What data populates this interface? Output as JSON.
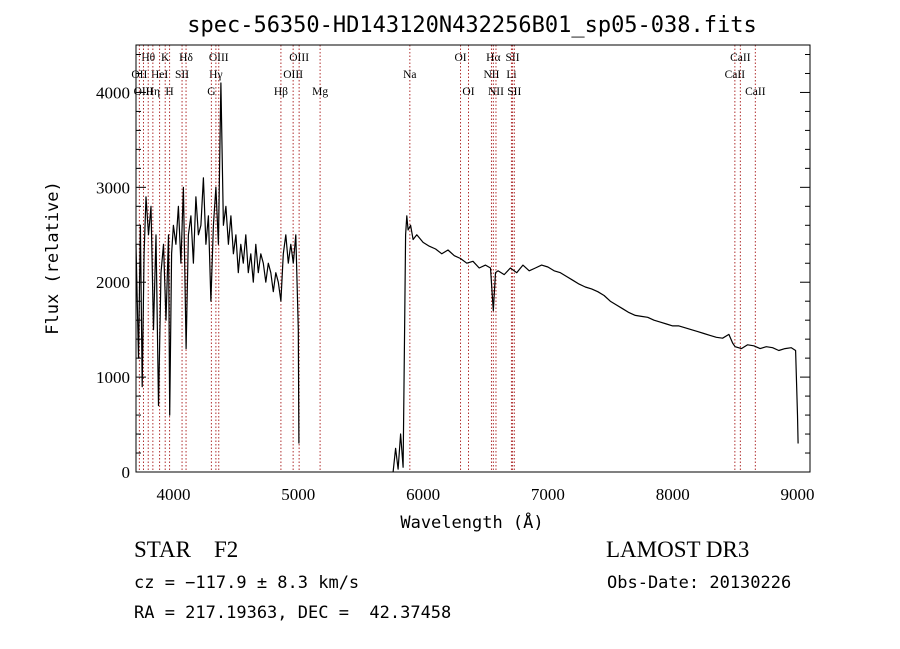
{
  "chart_data": {
    "type": "line",
    "title": "spec-56350-HD143120N432256B01_sp05-038.fits",
    "xlabel": "Wavelength (Å)",
    "ylabel": "Flux (relative)",
    "xlim": [
      3700,
      9100
    ],
    "ylim": [
      0,
      4500
    ],
    "xticks": [
      4000,
      5000,
      6000,
      7000,
      8000,
      9000
    ],
    "yticks": [
      0,
      1000,
      2000,
      3000,
      4000
    ],
    "xtick_labels": [
      "4000",
      "5000",
      "6000",
      "7000",
      "8000",
      "9000"
    ],
    "ytick_labels": [
      "0",
      "1000",
      "2000",
      "3000",
      "4000"
    ],
    "series": [
      {
        "name": "spectrum",
        "color": "#000000",
        "segments": [
          {
            "x": [
              3700,
              3720,
              3735,
              3750,
              3765,
              3780,
              3800,
              3820,
              3840,
              3860,
              3880,
              3900,
              3920,
              3940,
              3960,
              3970,
              3985,
              4000,
              4020,
              4040,
              4060,
              4080,
              4101,
              4120,
              4140,
              4160,
              4180,
              4200,
              4220,
              4240,
              4260,
              4280,
              4300,
              4320,
              4340,
              4360,
              4380,
              4400,
              4420,
              4440,
              4460,
              4480,
              4500,
              4520,
              4540,
              4560,
              4580,
              4600,
              4620,
              4640,
              4660,
              4680,
              4700,
              4720,
              4740,
              4760,
              4780,
              4800,
              4820,
              4840,
              4861,
              4880,
              4900,
              4920,
              4940,
              4960,
              4980,
              5000,
              5005
            ],
            "y": [
              2400,
              1200,
              2600,
              900,
              2300,
              2900,
              2500,
              2800,
              1500,
              2500,
              700,
              2100,
              2400,
              1600,
              2500,
              600,
              2300,
              2600,
              2400,
              2800,
              2200,
              3000,
              1300,
              2500,
              2700,
              2200,
              2900,
              2500,
              2600,
              3100,
              2400,
              2700,
              1800,
              2600,
              3000,
              2400,
              4100,
              2600,
              2800,
              2400,
              2700,
              2300,
              2500,
              2100,
              2400,
              2200,
              2500,
              2100,
              2300,
              2000,
              2400,
              2100,
              2300,
              2200,
              2000,
              2200,
              2100,
              1900,
              2100,
              2000,
              1800,
              2300,
              2500,
              2200,
              2400,
              2200,
              2500,
              1500,
              300
            ]
          },
          {
            "x": [
              5760,
              5780,
              5800,
              5820,
              5840,
              5850,
              5860,
              5870,
              5880,
              5900,
              5920,
              5950,
              6000,
              6050,
              6100,
              6150,
              6200,
              6250,
              6300,
              6350,
              6400,
              6450,
              6500,
              6540,
              6563,
              6580,
              6600,
              6650,
              6700,
              6750,
              6800,
              6850,
              6900,
              6950,
              7000,
              7050,
              7100,
              7150,
              7200,
              7250,
              7300,
              7350,
              7400,
              7450,
              7500,
              7550,
              7600,
              7650,
              7700,
              7750,
              7800,
              7850,
              7900,
              7950,
              8000,
              8050,
              8100,
              8150,
              8200,
              8250,
              8300,
              8350,
              8400,
              8450,
              8480,
              8500,
              8550,
              8600,
              8650,
              8700,
              8750,
              8800,
              8850,
              8900,
              8950,
              8985,
              9000,
              9005
            ],
            "y": [
              0,
              250,
              30,
              400,
              50,
              1300,
              2500,
              2700,
              2550,
              2600,
              2450,
              2500,
              2420,
              2380,
              2350,
              2300,
              2340,
              2280,
              2250,
              2200,
              2220,
              2150,
              2180,
              2150,
              1700,
              2100,
              2120,
              2080,
              2150,
              2100,
              2180,
              2120,
              2150,
              2180,
              2160,
              2120,
              2100,
              2060,
              2020,
              1980,
              1950,
              1930,
              1900,
              1860,
              1800,
              1760,
              1720,
              1680,
              1650,
              1640,
              1630,
              1600,
              1580,
              1560,
              1540,
              1540,
              1520,
              1500,
              1480,
              1460,
              1440,
              1420,
              1410,
              1450,
              1360,
              1320,
              1300,
              1340,
              1330,
              1300,
              1320,
              1310,
              1280,
              1300,
              1310,
              1280,
              600,
              300
            ]
          }
        ]
      }
    ],
    "lines": [
      {
        "label": "Hθ",
        "x": 3798,
        "row": 0
      },
      {
        "label": "OII",
        "x": 3727,
        "row": 1
      },
      {
        "label": "OIII",
        "x": 3760,
        "row": 2
      },
      {
        "label": "K",
        "x": 3934,
        "row": 0
      },
      {
        "label": "HeI",
        "x": 3889,
        "row": 1
      },
      {
        "label": "Hη",
        "x": 3835,
        "row": 2
      },
      {
        "label": "Hδ",
        "x": 4101,
        "row": 0
      },
      {
        "label": "SII",
        "x": 4069,
        "row": 1
      },
      {
        "label": "H",
        "x": 3969,
        "row": 2
      },
      {
        "label": "OIII",
        "x": 4363,
        "row": 0
      },
      {
        "label": "Hγ",
        "x": 4340,
        "row": 1
      },
      {
        "label": "G",
        "x": 4304,
        "row": 2
      },
      {
        "label": "OIII",
        "x": 5007,
        "row": 0
      },
      {
        "label": "OIII",
        "x": 4959,
        "row": 1
      },
      {
        "label": "Hβ",
        "x": 4861,
        "row": 2
      },
      {
        "label": "Mg",
        "x": 5175,
        "row": 2
      },
      {
        "label": "Na",
        "x": 5894,
        "row": 1
      },
      {
        "label": "OI",
        "x": 6300,
        "row": 0
      },
      {
        "label": "OI",
        "x": 6364,
        "row": 2
      },
      {
        "label": "Hα",
        "x": 6563,
        "row": 0
      },
      {
        "label": "NII",
        "x": 6548,
        "row": 1
      },
      {
        "label": "NII",
        "x": 6584,
        "row": 2
      },
      {
        "label": "SII",
        "x": 6717,
        "row": 0
      },
      {
        "label": "Li",
        "x": 6708,
        "row": 1
      },
      {
        "label": "SII",
        "x": 6731,
        "row": 2
      },
      {
        "label": "CaII",
        "x": 8542,
        "row": 0
      },
      {
        "label": "CaII",
        "x": 8498,
        "row": 1
      },
      {
        "label": "CaII",
        "x": 8662,
        "row": 2
      }
    ]
  },
  "info": {
    "obj_class": "STAR    F2",
    "survey": "LAMOST DR3",
    "cz": "cz = −117.9 ± 8.3 km/s",
    "obs_date": "Obs-Date: 20130226",
    "radec": "RA = 217.19363, DEC =  42.37458"
  },
  "colors": {
    "spectrum": "#000000",
    "line_markers": "#b03030",
    "axes": "#000000"
  }
}
